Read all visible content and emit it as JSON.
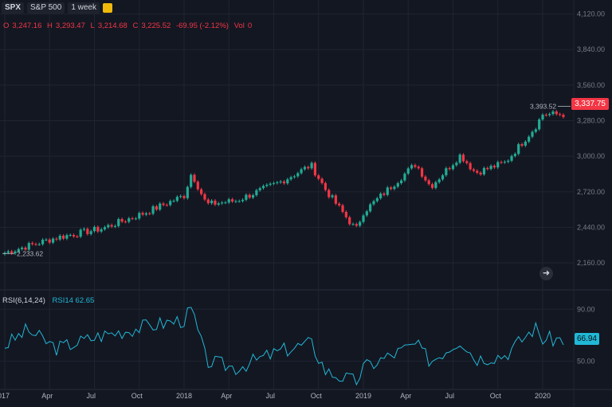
{
  "header": {
    "symbol": "SPX",
    "name": "S&P 500",
    "interval": "1 week",
    "icon": "flag-icon"
  },
  "ohlc": {
    "o_label": "O",
    "o": "3,247.16",
    "h_label": "H",
    "h": "3,293.47",
    "l_label": "L",
    "l": "3,214.68",
    "c_label": "C",
    "c": "3,225.52",
    "change": "-69.95 (-2.12%)",
    "vol_label": "Vol",
    "vol": "0"
  },
  "price_axis": {
    "ticks": [
      "4,120.00",
      "3,840.00",
      "3,560.00",
      "3,280.00",
      "3,000.00",
      "2,720.00",
      "2,440.00",
      "2,160.00"
    ],
    "current_price": "3,337.75",
    "high_marker": "3,393.52",
    "low_marker": "2,233.62"
  },
  "rsi": {
    "label": "RSI(6,14,24)",
    "series_label": "RSI14 62.65",
    "current": "66.94",
    "ticks": [
      "90.00",
      "50.00"
    ]
  },
  "time_axis": {
    "labels": [
      "2017",
      "Apr",
      "Jul",
      "Oct",
      "2018",
      "Apr",
      "Jul",
      "Oct",
      "2019",
      "Apr",
      "Jul",
      "Oct",
      "2020"
    ]
  },
  "colors": {
    "up": "#22ab94",
    "down": "#f23645",
    "rsi_line": "#21b7d6",
    "background": "#131722",
    "grid": "#1f2430"
  },
  "chart_data": {
    "type": "candlestick",
    "interval": "1 week",
    "price_range": [
      2060,
      4180
    ],
    "rsi_range": [
      30,
      100
    ],
    "price_anchors": [
      {
        "x": "2017",
        "close": 2240
      },
      {
        "x": "Apr 2017",
        "close": 2360
      },
      {
        "x": "Jul 2017",
        "close": 2430
      },
      {
        "x": "Oct 2017",
        "close": 2560
      },
      {
        "x": "2018",
        "close": 2690
      },
      {
        "x": "Jan 2018",
        "close": 2870
      },
      {
        "x": "Feb 2018",
        "close": 2620
      },
      {
        "x": "Apr 2018",
        "close": 2650
      },
      {
        "x": "Jul 2018",
        "close": 2800
      },
      {
        "x": "Sep 2018",
        "close": 2930
      },
      {
        "x": "Oct 2018",
        "close": 2730
      },
      {
        "x": "Dec 2018",
        "close": 2420
      },
      {
        "x": "2019",
        "close": 2560
      },
      {
        "x": "Apr 2019",
        "close": 2940
      },
      {
        "x": "May 2019",
        "close": 2760
      },
      {
        "x": "Jul 2019",
        "close": 3010
      },
      {
        "x": "Aug 2019",
        "close": 2870
      },
      {
        "x": "Oct 2019",
        "close": 2950
      },
      {
        "x": "Dec 2019",
        "close": 3230
      },
      {
        "x": "2020",
        "close": 3330
      }
    ],
    "rsi_anchors": [
      {
        "x": "2017",
        "rsi": 62
      },
      {
        "x": "Feb 2017",
        "rsi": 74
      },
      {
        "x": "Apr 2017",
        "rsi": 60
      },
      {
        "x": "Jul 2017",
        "rsi": 70
      },
      {
        "x": "Oct 2017",
        "rsi": 77
      },
      {
        "x": "2018",
        "rsi": 82
      },
      {
        "x": "Jan 2018",
        "rsi": 90
      },
      {
        "x": "Feb 2018",
        "rsi": 50
      },
      {
        "x": "Apr 2018",
        "rsi": 45
      },
      {
        "x": "Jul 2018",
        "rsi": 58
      },
      {
        "x": "Sep 2018",
        "rsi": 64
      },
      {
        "x": "Oct 2018",
        "rsi": 42
      },
      {
        "x": "Dec 2018",
        "rsi": 34
      },
      {
        "x": "2019",
        "rsi": 45
      },
      {
        "x": "Apr 2019",
        "rsi": 63
      },
      {
        "x": "May 2019",
        "rsi": 50
      },
      {
        "x": "Jul 2019",
        "rsi": 67
      },
      {
        "x": "Aug 2019",
        "rsi": 52
      },
      {
        "x": "Oct 2019",
        "rsi": 55
      },
      {
        "x": "Dec 2019",
        "rsi": 76
      },
      {
        "x": "2020",
        "rsi": 67
      }
    ]
  }
}
